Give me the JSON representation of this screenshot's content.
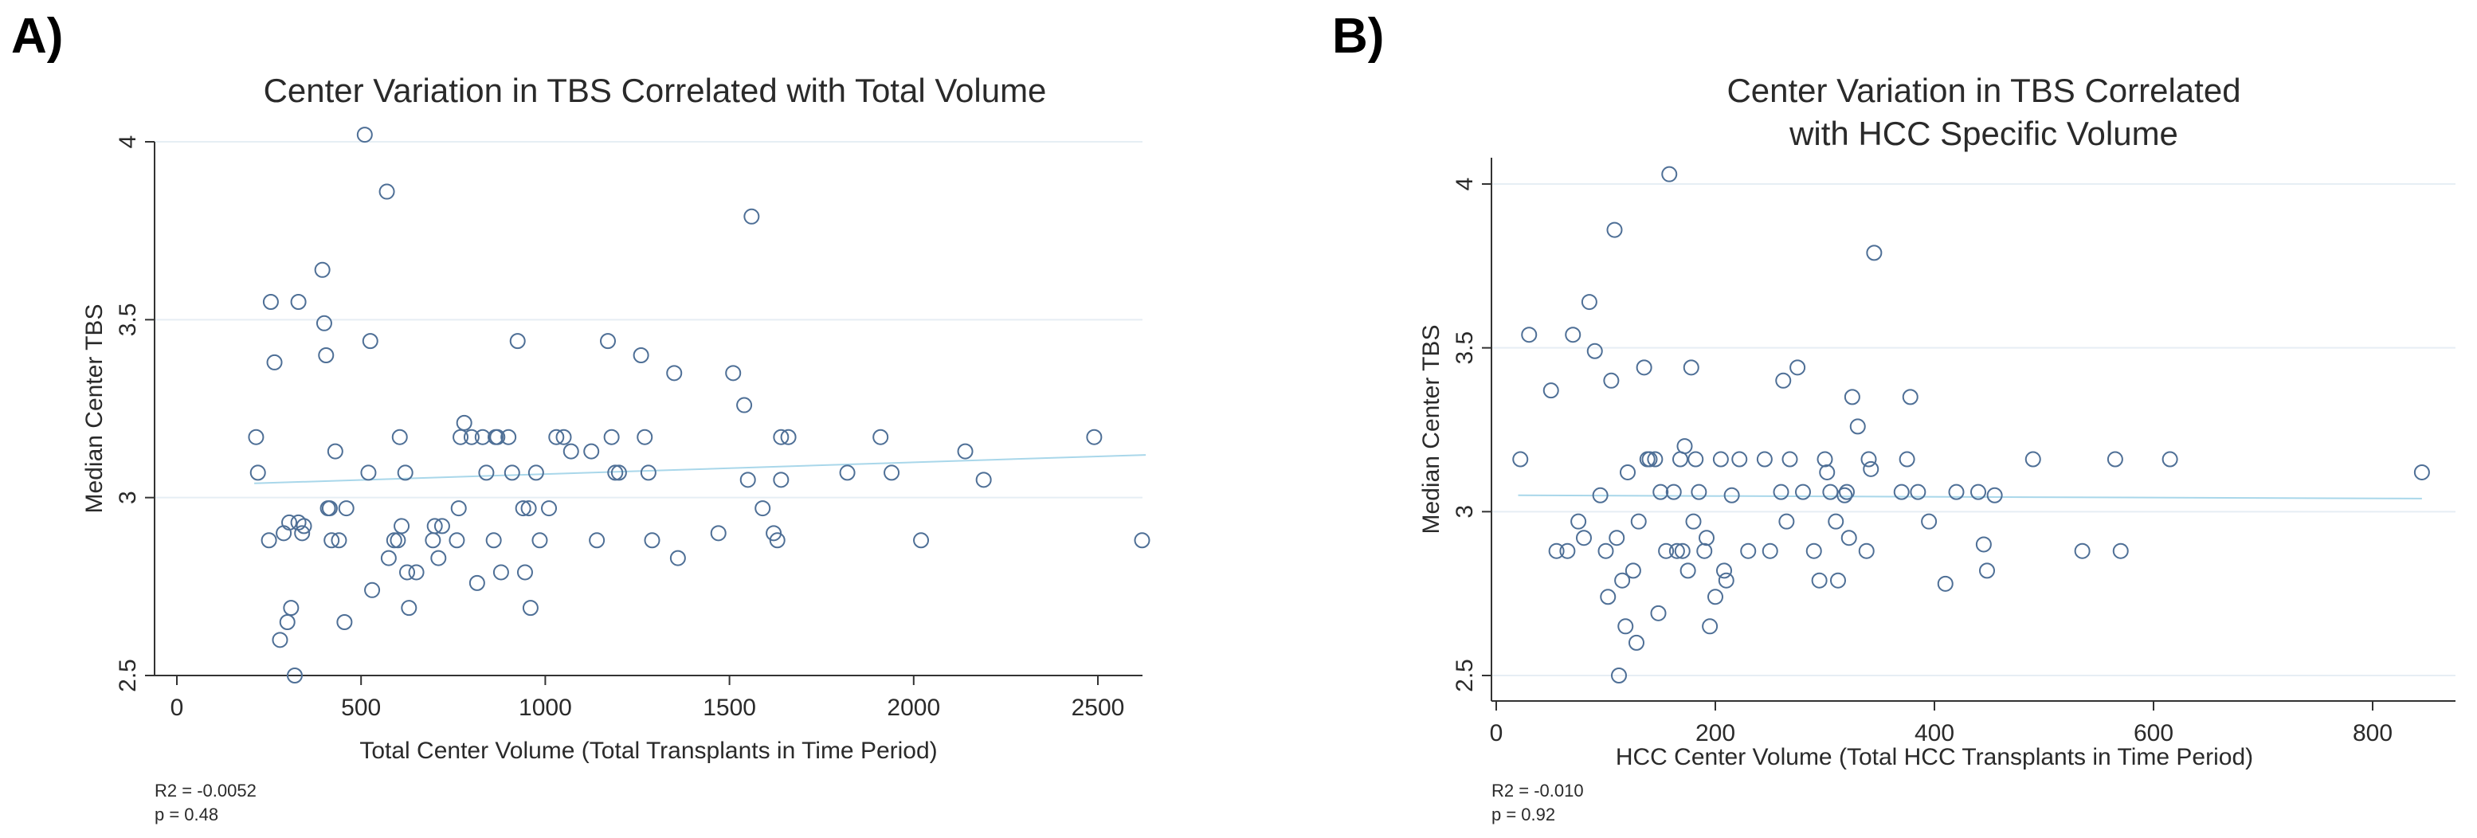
{
  "chart_data": [
    {
      "panel": "A)",
      "type": "scatter",
      "title": [
        "Center Variation in TBS Correlated with Total Volume"
      ],
      "xlabel": "Total Center Volume (Total Transplants in Time Period)",
      "ylabel": "Median Center TBS",
      "xlim": [
        0,
        2650
      ],
      "ylim": [
        2.5,
        4.0
      ],
      "xticks": [
        0,
        500,
        1000,
        1500,
        2000,
        2500
      ],
      "yticks": [
        2.5,
        3,
        3.5,
        4
      ],
      "ytick_labels": [
        "2.5",
        "3",
        "3.5",
        "4"
      ],
      "grid": true,
      "stats": [
        "R2 = -0.0052",
        "p = 0.48"
      ],
      "fit_line": {
        "x": [
          210,
          2630
        ],
        "y": [
          3.04,
          3.12
        ]
      },
      "points": [
        [
          215,
          3.17
        ],
        [
          220,
          3.07
        ],
        [
          250,
          2.88
        ],
        [
          255,
          3.55
        ],
        [
          265,
          3.38
        ],
        [
          280,
          2.6
        ],
        [
          290,
          2.9
        ],
        [
          300,
          2.65
        ],
        [
          305,
          2.93
        ],
        [
          310,
          2.69
        ],
        [
          320,
          2.5
        ],
        [
          330,
          3.55
        ],
        [
          330,
          2.93
        ],
        [
          340,
          2.9
        ],
        [
          345,
          2.92
        ],
        [
          395,
          3.64
        ],
        [
          400,
          3.49
        ],
        [
          405,
          3.4
        ],
        [
          410,
          2.97
        ],
        [
          415,
          2.97
        ],
        [
          420,
          2.88
        ],
        [
          430,
          3.13
        ],
        [
          440,
          2.88
        ],
        [
          455,
          2.65
        ],
        [
          460,
          2.97
        ],
        [
          510,
          4.02
        ],
        [
          520,
          3.07
        ],
        [
          525,
          3.44
        ],
        [
          530,
          2.74
        ],
        [
          570,
          3.86
        ],
        [
          575,
          2.83
        ],
        [
          590,
          2.88
        ],
        [
          600,
          2.88
        ],
        [
          605,
          3.17
        ],
        [
          610,
          2.92
        ],
        [
          620,
          3.07
        ],
        [
          625,
          2.79
        ],
        [
          630,
          2.69
        ],
        [
          650,
          2.79
        ],
        [
          695,
          2.88
        ],
        [
          700,
          2.92
        ],
        [
          710,
          2.83
        ],
        [
          720,
          2.92
        ],
        [
          760,
          2.88
        ],
        [
          765,
          2.97
        ],
        [
          770,
          3.17
        ],
        [
          780,
          3.21
        ],
        [
          800,
          3.17
        ],
        [
          815,
          2.76
        ],
        [
          830,
          3.17
        ],
        [
          840,
          3.07
        ],
        [
          860,
          2.88
        ],
        [
          865,
          3.17
        ],
        [
          870,
          3.17
        ],
        [
          880,
          2.79
        ],
        [
          900,
          3.17
        ],
        [
          910,
          3.07
        ],
        [
          925,
          3.44
        ],
        [
          940,
          2.97
        ],
        [
          945,
          2.79
        ],
        [
          955,
          2.97
        ],
        [
          960,
          2.69
        ],
        [
          975,
          3.07
        ],
        [
          985,
          2.88
        ],
        [
          1010,
          2.97
        ],
        [
          1030,
          3.17
        ],
        [
          1050,
          3.17
        ],
        [
          1070,
          3.13
        ],
        [
          1125,
          3.13
        ],
        [
          1140,
          2.88
        ],
        [
          1170,
          3.44
        ],
        [
          1180,
          3.17
        ],
        [
          1190,
          3.07
        ],
        [
          1200,
          3.07
        ],
        [
          1260,
          3.4
        ],
        [
          1270,
          3.17
        ],
        [
          1280,
          3.07
        ],
        [
          1290,
          2.88
        ],
        [
          1350,
          3.35
        ],
        [
          1360,
          2.83
        ],
        [
          1470,
          2.9
        ],
        [
          1510,
          3.35
        ],
        [
          1540,
          3.26
        ],
        [
          1550,
          3.05
        ],
        [
          1560,
          3.79
        ],
        [
          1590,
          2.97
        ],
        [
          1620,
          2.9
        ],
        [
          1630,
          2.88
        ],
        [
          1640,
          3.17
        ],
        [
          1640,
          3.05
        ],
        [
          1660,
          3.17
        ],
        [
          1820,
          3.07
        ],
        [
          1910,
          3.17
        ],
        [
          1940,
          3.07
        ],
        [
          2020,
          2.88
        ],
        [
          2140,
          3.13
        ],
        [
          2190,
          3.05
        ],
        [
          2490,
          3.17
        ],
        [
          2620,
          2.88
        ]
      ]
    },
    {
      "panel": "B)",
      "type": "scatter",
      "title": [
        "Center Variation in TBS Correlated",
        "with HCC Specific Volume"
      ],
      "xlabel": "HCC Center Volume (Total HCC Transplants in Time Period)",
      "ylabel": "Median Center TBS",
      "xlim": [
        0,
        860
      ],
      "ylim": [
        2.5,
        4.0
      ],
      "xticks": [
        0,
        200,
        400,
        600,
        800
      ],
      "yticks": [
        2.5,
        3,
        3.5,
        4
      ],
      "ytick_labels": [
        "2.5",
        "3",
        "3.5",
        "4"
      ],
      "grid": true,
      "stats": [
        "R2 = -0.010",
        "p = 0.92"
      ],
      "fit_line": {
        "x": [
          20,
          845
        ],
        "y": [
          3.05,
          3.04
        ]
      },
      "points": [
        [
          22,
          3.16
        ],
        [
          30,
          3.54
        ],
        [
          50,
          3.37
        ],
        [
          55,
          2.88
        ],
        [
          65,
          2.88
        ],
        [
          70,
          3.54
        ],
        [
          75,
          2.97
        ],
        [
          80,
          2.92
        ],
        [
          85,
          3.64
        ],
        [
          90,
          3.49
        ],
        [
          95,
          3.05
        ],
        [
          100,
          2.88
        ],
        [
          102,
          2.74
        ],
        [
          105,
          3.4
        ],
        [
          108,
          3.86
        ],
        [
          110,
          2.92
        ],
        [
          112,
          2.5
        ],
        [
          115,
          2.79
        ],
        [
          118,
          2.65
        ],
        [
          120,
          3.12
        ],
        [
          125,
          2.82
        ],
        [
          128,
          2.6
        ],
        [
          130,
          2.97
        ],
        [
          135,
          3.44
        ],
        [
          138,
          3.16
        ],
        [
          140,
          3.16
        ],
        [
          145,
          3.16
        ],
        [
          148,
          2.69
        ],
        [
          150,
          3.06
        ],
        [
          155,
          2.88
        ],
        [
          158,
          4.03
        ],
        [
          162,
          3.06
        ],
        [
          165,
          2.88
        ],
        [
          168,
          3.16
        ],
        [
          170,
          2.88
        ],
        [
          172,
          3.2
        ],
        [
          175,
          2.82
        ],
        [
          178,
          3.44
        ],
        [
          180,
          2.97
        ],
        [
          182,
          3.16
        ],
        [
          185,
          3.06
        ],
        [
          190,
          2.88
        ],
        [
          192,
          2.92
        ],
        [
          195,
          2.65
        ],
        [
          200,
          2.74
        ],
        [
          205,
          3.16
        ],
        [
          208,
          2.82
        ],
        [
          210,
          2.79
        ],
        [
          215,
          3.05
        ],
        [
          222,
          3.16
        ],
        [
          230,
          2.88
        ],
        [
          245,
          3.16
        ],
        [
          250,
          2.88
        ],
        [
          260,
          3.06
        ],
        [
          262,
          3.4
        ],
        [
          265,
          2.97
        ],
        [
          268,
          3.16
        ],
        [
          275,
          3.44
        ],
        [
          280,
          3.06
        ],
        [
          290,
          2.88
        ],
        [
          295,
          2.79
        ],
        [
          300,
          3.16
        ],
        [
          302,
          3.12
        ],
        [
          305,
          3.06
        ],
        [
          310,
          2.97
        ],
        [
          312,
          2.79
        ],
        [
          318,
          3.05
        ],
        [
          320,
          3.06
        ],
        [
          322,
          2.92
        ],
        [
          325,
          3.35
        ],
        [
          330,
          3.26
        ],
        [
          338,
          2.88
        ],
        [
          340,
          3.16
        ],
        [
          342,
          3.13
        ],
        [
          345,
          3.79
        ],
        [
          370,
          3.06
        ],
        [
          375,
          3.16
        ],
        [
          378,
          3.35
        ],
        [
          385,
          3.06
        ],
        [
          395,
          2.97
        ],
        [
          410,
          2.78
        ],
        [
          420,
          3.06
        ],
        [
          440,
          3.06
        ],
        [
          445,
          2.9
        ],
        [
          448,
          2.82
        ],
        [
          455,
          3.05
        ],
        [
          490,
          3.16
        ],
        [
          535,
          2.88
        ],
        [
          565,
          3.16
        ],
        [
          570,
          2.88
        ],
        [
          615,
          3.16
        ],
        [
          845,
          3.12
        ]
      ]
    }
  ]
}
